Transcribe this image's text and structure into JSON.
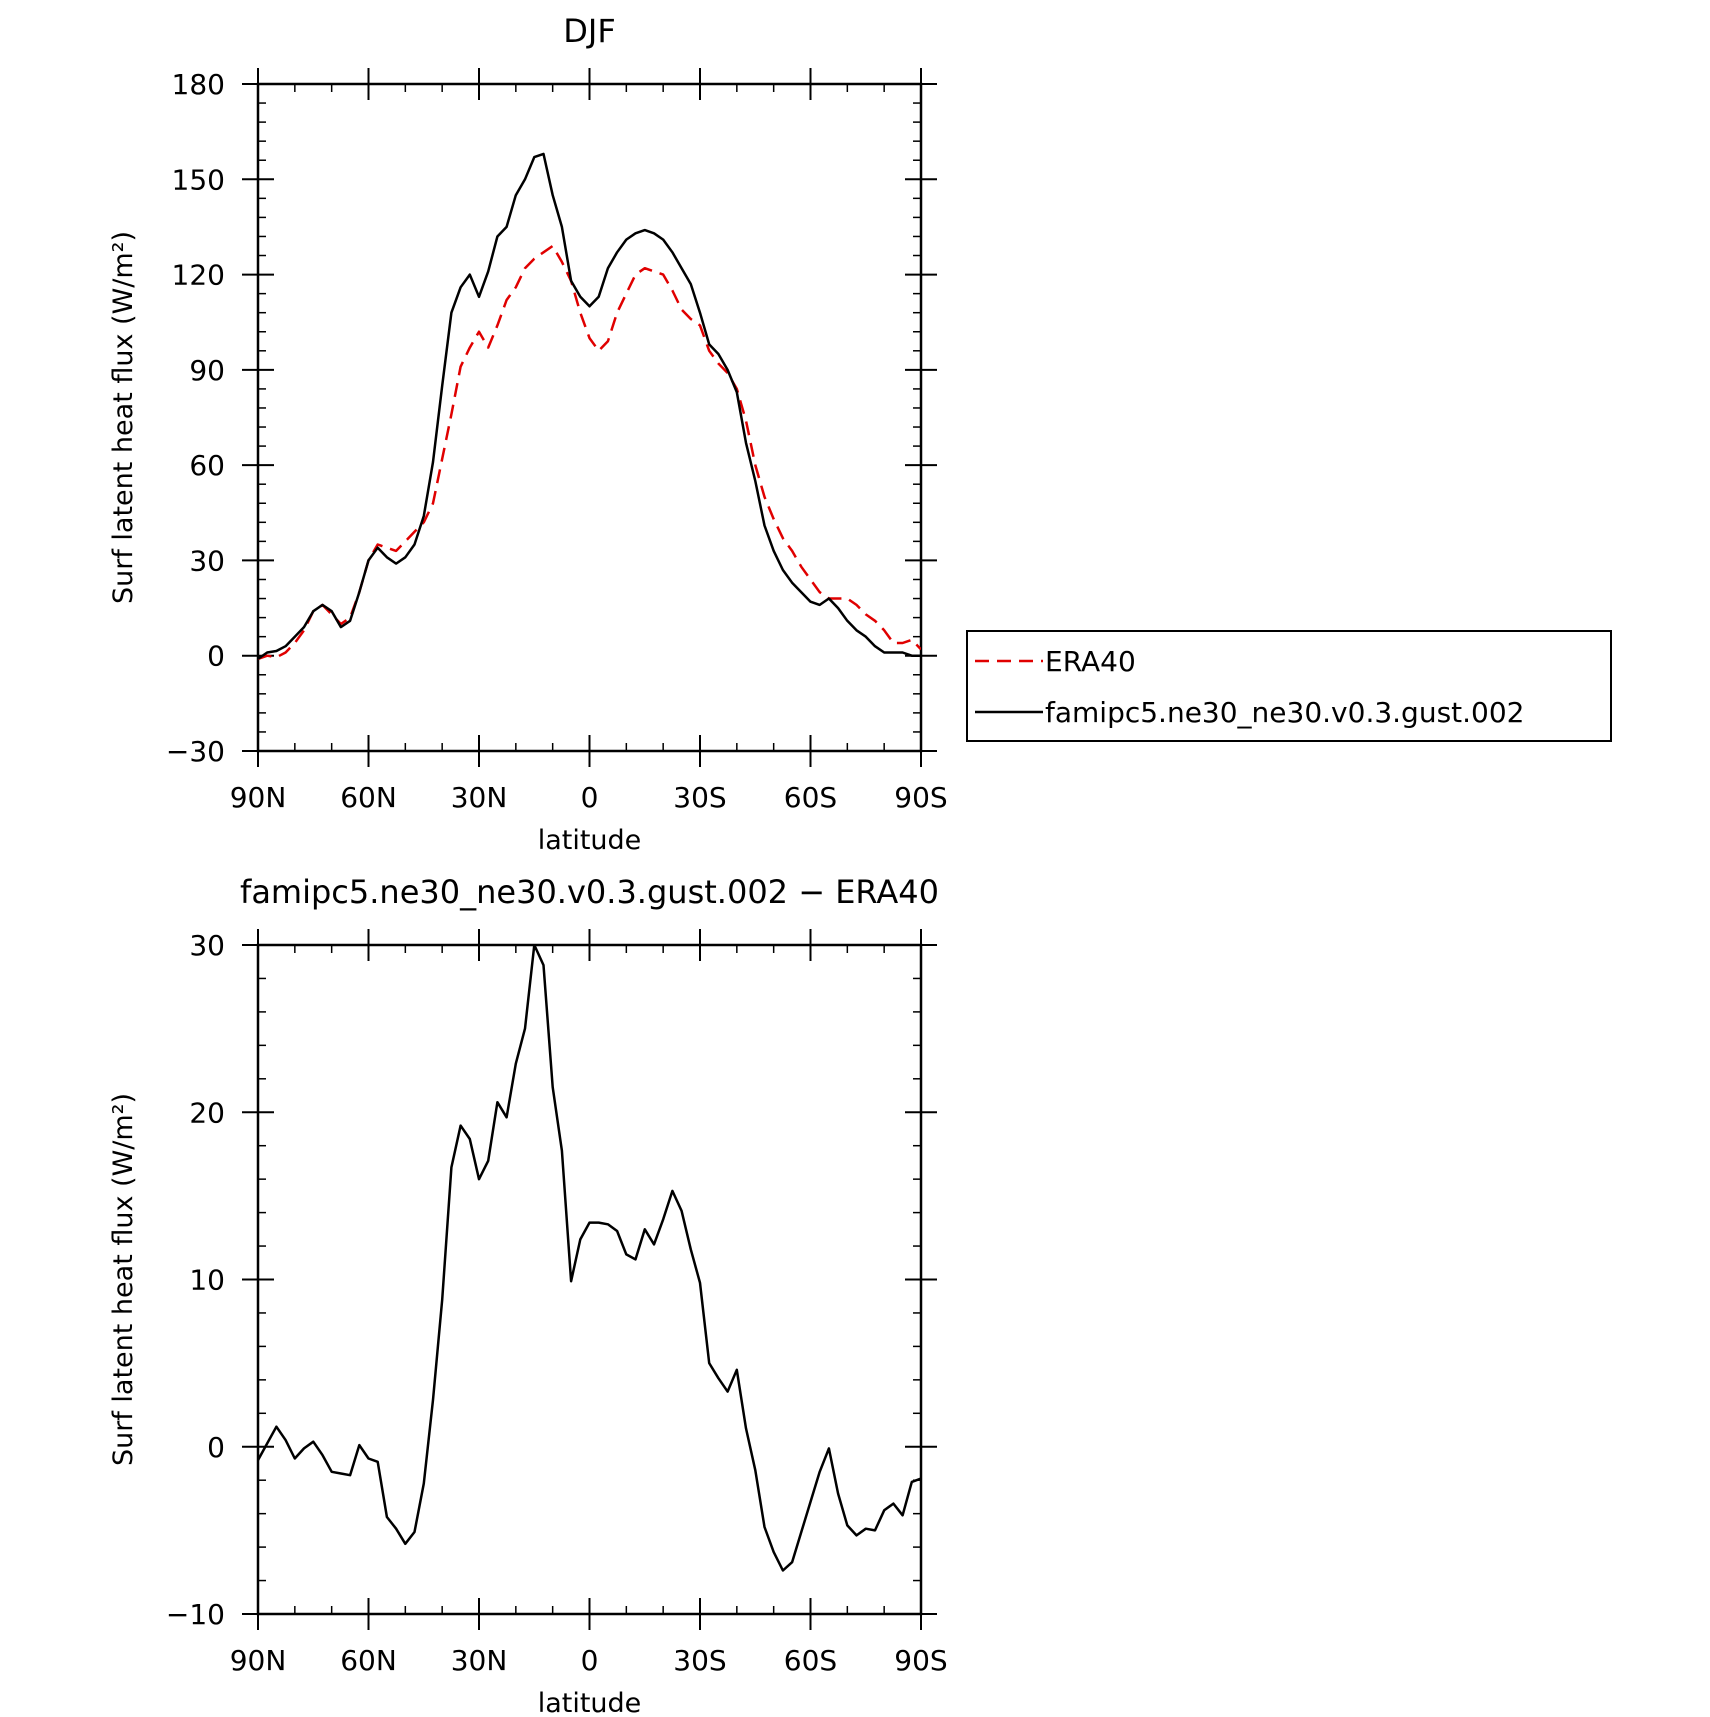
{
  "chart_data": [
    {
      "type": "line",
      "title": "DJF",
      "xlabel": "latitude",
      "ylabel": "Surf latent heat flux (W/m²)",
      "ylim": [
        -30,
        180
      ],
      "xlim": [
        90,
        -90
      ],
      "yticks": [
        -30,
        0,
        30,
        60,
        90,
        120,
        150,
        180
      ],
      "xticks": [
        {
          "value": 90,
          "label": "90N"
        },
        {
          "value": 60,
          "label": "60N"
        },
        {
          "value": 30,
          "label": "30N"
        },
        {
          "value": 0,
          "label": "0"
        },
        {
          "value": -30,
          "label": "30S"
        },
        {
          "value": -60,
          "label": "60S"
        },
        {
          "value": -90,
          "label": "90S"
        }
      ],
      "grid": false,
      "legend_position": "outside-right",
      "series": [
        {
          "name": "ERA40",
          "color": "#e00000",
          "dash": "dashed",
          "x": [
            90,
            87.5,
            85,
            82.5,
            80,
            77.5,
            75,
            72.5,
            70,
            67.5,
            65,
            62.5,
            60,
            57.5,
            55,
            52.5,
            50,
            47.5,
            45,
            42.5,
            40,
            37.5,
            35,
            32.5,
            30,
            27.5,
            25,
            22.5,
            20,
            17.5,
            15,
            12.5,
            10,
            7.5,
            5,
            2.5,
            0,
            -2.5,
            -5,
            -7.5,
            -10,
            -12.5,
            -15,
            -17.5,
            -20,
            -22.5,
            -25,
            -27.5,
            -30,
            -32.5,
            -35,
            -37.5,
            -40,
            -42.5,
            -45,
            -47.5,
            -50,
            -52.5,
            -55,
            -57.5,
            -60,
            -62.5,
            -65,
            -67.5,
            -70,
            -72.5,
            -75,
            -77.5,
            -80,
            -82.5,
            -85,
            -87.5,
            -90
          ],
          "values": [
            -1,
            0,
            -0.5,
            1,
            4,
            8,
            14,
            16,
            13,
            10,
            12,
            20,
            30,
            35,
            34,
            33,
            36,
            39,
            42,
            48,
            62,
            76,
            91,
            97,
            102,
            97,
            104,
            112,
            116,
            122,
            125,
            127,
            129,
            124,
            118,
            108,
            100,
            96,
            99,
            108,
            114,
            120,
            122,
            121,
            120,
            115,
            109,
            106,
            104,
            96,
            92,
            89,
            84,
            74,
            60,
            50,
            43,
            37,
            33,
            28,
            24,
            20,
            18,
            18,
            18,
            16,
            13,
            11,
            8,
            4,
            4,
            5,
            2
          ]
        },
        {
          "name": "famipc5.ne30_ne30.v0.3.gust.002",
          "color": "#000000",
          "dash": "solid",
          "x": [
            90,
            87.5,
            85,
            82.5,
            80,
            77.5,
            75,
            72.5,
            70,
            67.5,
            65,
            62.5,
            60,
            57.5,
            55,
            52.5,
            50,
            47.5,
            45,
            42.5,
            40,
            37.5,
            35,
            32.5,
            30,
            27.5,
            25,
            22.5,
            20,
            17.5,
            15,
            12.5,
            10,
            7.5,
            5,
            2.5,
            0,
            -2.5,
            -5,
            -7.5,
            -10,
            -12.5,
            -15,
            -17.5,
            -20,
            -22.5,
            -25,
            -27.5,
            -30,
            -32.5,
            -35,
            -37.5,
            -40,
            -42.5,
            -45,
            -47.5,
            -50,
            -52.5,
            -55,
            -57.5,
            -60,
            -62.5,
            -65,
            -67.5,
            -70,
            -72.5,
            -75,
            -77.5,
            -80,
            -82.5,
            -85,
            -87.5,
            -90
          ],
          "values": [
            -1,
            1,
            1.5,
            3,
            6,
            9,
            14,
            16,
            14,
            9,
            11,
            20,
            30,
            34,
            31,
            29,
            31,
            35,
            44,
            61,
            85,
            108,
            116,
            120,
            113,
            121,
            132,
            135,
            145,
            150,
            157,
            158,
            145,
            135,
            118,
            113,
            110,
            113,
            122,
            127,
            131,
            133,
            134,
            133,
            131,
            127,
            122,
            117,
            108,
            98,
            95,
            90,
            83,
            67,
            55,
            41,
            33,
            27,
            23,
            20,
            17,
            16,
            18,
            15,
            11,
            8,
            6,
            3,
            1,
            1,
            1,
            0,
            0
          ]
        }
      ]
    },
    {
      "type": "line",
      "title": "famipc5.ne30_ne30.v0.3.gust.002 − ERA40",
      "xlabel": "latitude",
      "ylabel": "Surf latent heat flux (W/m²)",
      "ylim": [
        -10,
        30
      ],
      "xlim": [
        90,
        -90
      ],
      "yticks": [
        -10,
        0,
        10,
        20,
        30
      ],
      "xticks": [
        {
          "value": 90,
          "label": "90N"
        },
        {
          "value": 60,
          "label": "60N"
        },
        {
          "value": 30,
          "label": "30N"
        },
        {
          "value": 0,
          "label": "0"
        },
        {
          "value": -30,
          "label": "30S"
        },
        {
          "value": -60,
          "label": "60S"
        },
        {
          "value": -90,
          "label": "90S"
        }
      ],
      "grid": false,
      "series": [
        {
          "color": "#000000",
          "dash": "solid",
          "x": [
            90,
            87.5,
            85,
            82.5,
            80,
            77.5,
            75,
            72.5,
            70,
            67.5,
            65,
            62.5,
            60,
            57.5,
            55,
            52.5,
            50,
            47.5,
            45,
            42.5,
            40,
            37.5,
            35,
            32.5,
            30,
            27.5,
            25,
            22.5,
            20,
            17.5,
            15,
            12.5,
            10,
            7.5,
            5,
            2.5,
            0,
            -2.5,
            -5,
            -7.5,
            -10,
            -12.5,
            -15,
            -17.5,
            -20,
            -22.5,
            -25,
            -27.5,
            -30,
            -32.5,
            -35,
            -37.5,
            -40,
            -42.5,
            -45,
            -47.5,
            -50,
            -52.5,
            -55,
            -57.5,
            -60,
            -62.5,
            -65,
            -67.5,
            -70,
            -72.5,
            -75,
            -77.5,
            -80,
            -82.5,
            -85,
            -87.5,
            -90
          ],
          "values": [
            -0.8,
            0.2,
            1.2,
            0.4,
            -0.7,
            -0.1,
            0.3,
            -0.5,
            -1.5,
            -1.6,
            -1.7,
            0.1,
            -0.7,
            -0.9,
            -4.2,
            -4.9,
            -5.8,
            -5.1,
            -2.2,
            2.8,
            8.8,
            16.7,
            19.2,
            18.4,
            16.0,
            17.1,
            20.6,
            19.7,
            22.9,
            25.0,
            30.0,
            28.8,
            21.5,
            17.7,
            9.9,
            12.4,
            13.4,
            13.4,
            13.3,
            12.9,
            11.5,
            11.2,
            13.0,
            12.1,
            13.6,
            15.3,
            14.1,
            11.8,
            9.8,
            5.0,
            4.1,
            3.3,
            4.6,
            1.1,
            -1.4,
            -4.8,
            -6.3,
            -7.4,
            -6.9,
            -5.1,
            -3.3,
            -1.5,
            -0.1,
            -2.8,
            -4.7,
            -5.3,
            -4.9,
            -5.0,
            -3.8,
            -3.4,
            -4.1,
            -2.1,
            -1.9
          ]
        }
      ]
    }
  ]
}
